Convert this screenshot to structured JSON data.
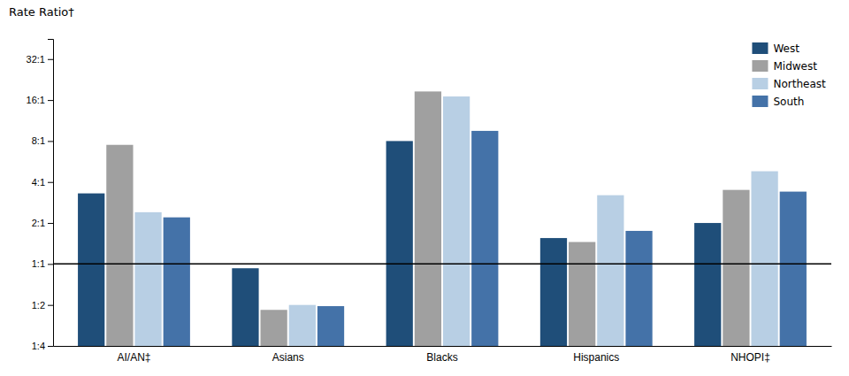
{
  "chart_data": {
    "type": "bar",
    "ylabel": "Rate Ratio†",
    "categories": [
      "AI/AN‡",
      "Asians",
      "Blacks",
      "Hispanics",
      "NHOPI‡"
    ],
    "series": [
      {
        "name": "West",
        "color": "#1f4e79",
        "values": [
          3.3,
          0.93,
          8.0,
          1.55,
          2.0
        ]
      },
      {
        "name": "Midwest",
        "color": "#a0a0a0",
        "values": [
          7.5,
          0.46,
          18.5,
          1.45,
          3.5
        ]
      },
      {
        "name": "Northeast",
        "color": "#b8cfe4",
        "values": [
          2.4,
          0.5,
          17.0,
          3.2,
          4.8
        ]
      },
      {
        "name": "South",
        "color": "#4472a8",
        "values": [
          2.2,
          0.49,
          9.5,
          1.75,
          3.4
        ]
      }
    ],
    "log": "y",
    "ylim": [
      0.25,
      45.0
    ],
    "yticks": [
      {
        "value": 0.25,
        "label": "1:4"
      },
      {
        "value": 0.5,
        "label": "1:2"
      },
      {
        "value": 1.0,
        "label": "1:1"
      },
      {
        "value": 2.0,
        "label": "2:1"
      },
      {
        "value": 4.0,
        "label": "4:1"
      },
      {
        "value": 8.0,
        "label": "8:1"
      },
      {
        "value": 16.0,
        "label": "16:1"
      },
      {
        "value": 32.0,
        "label": "32:1"
      }
    ],
    "hline": 1.0,
    "grid": false,
    "legend": "upper right"
  }
}
